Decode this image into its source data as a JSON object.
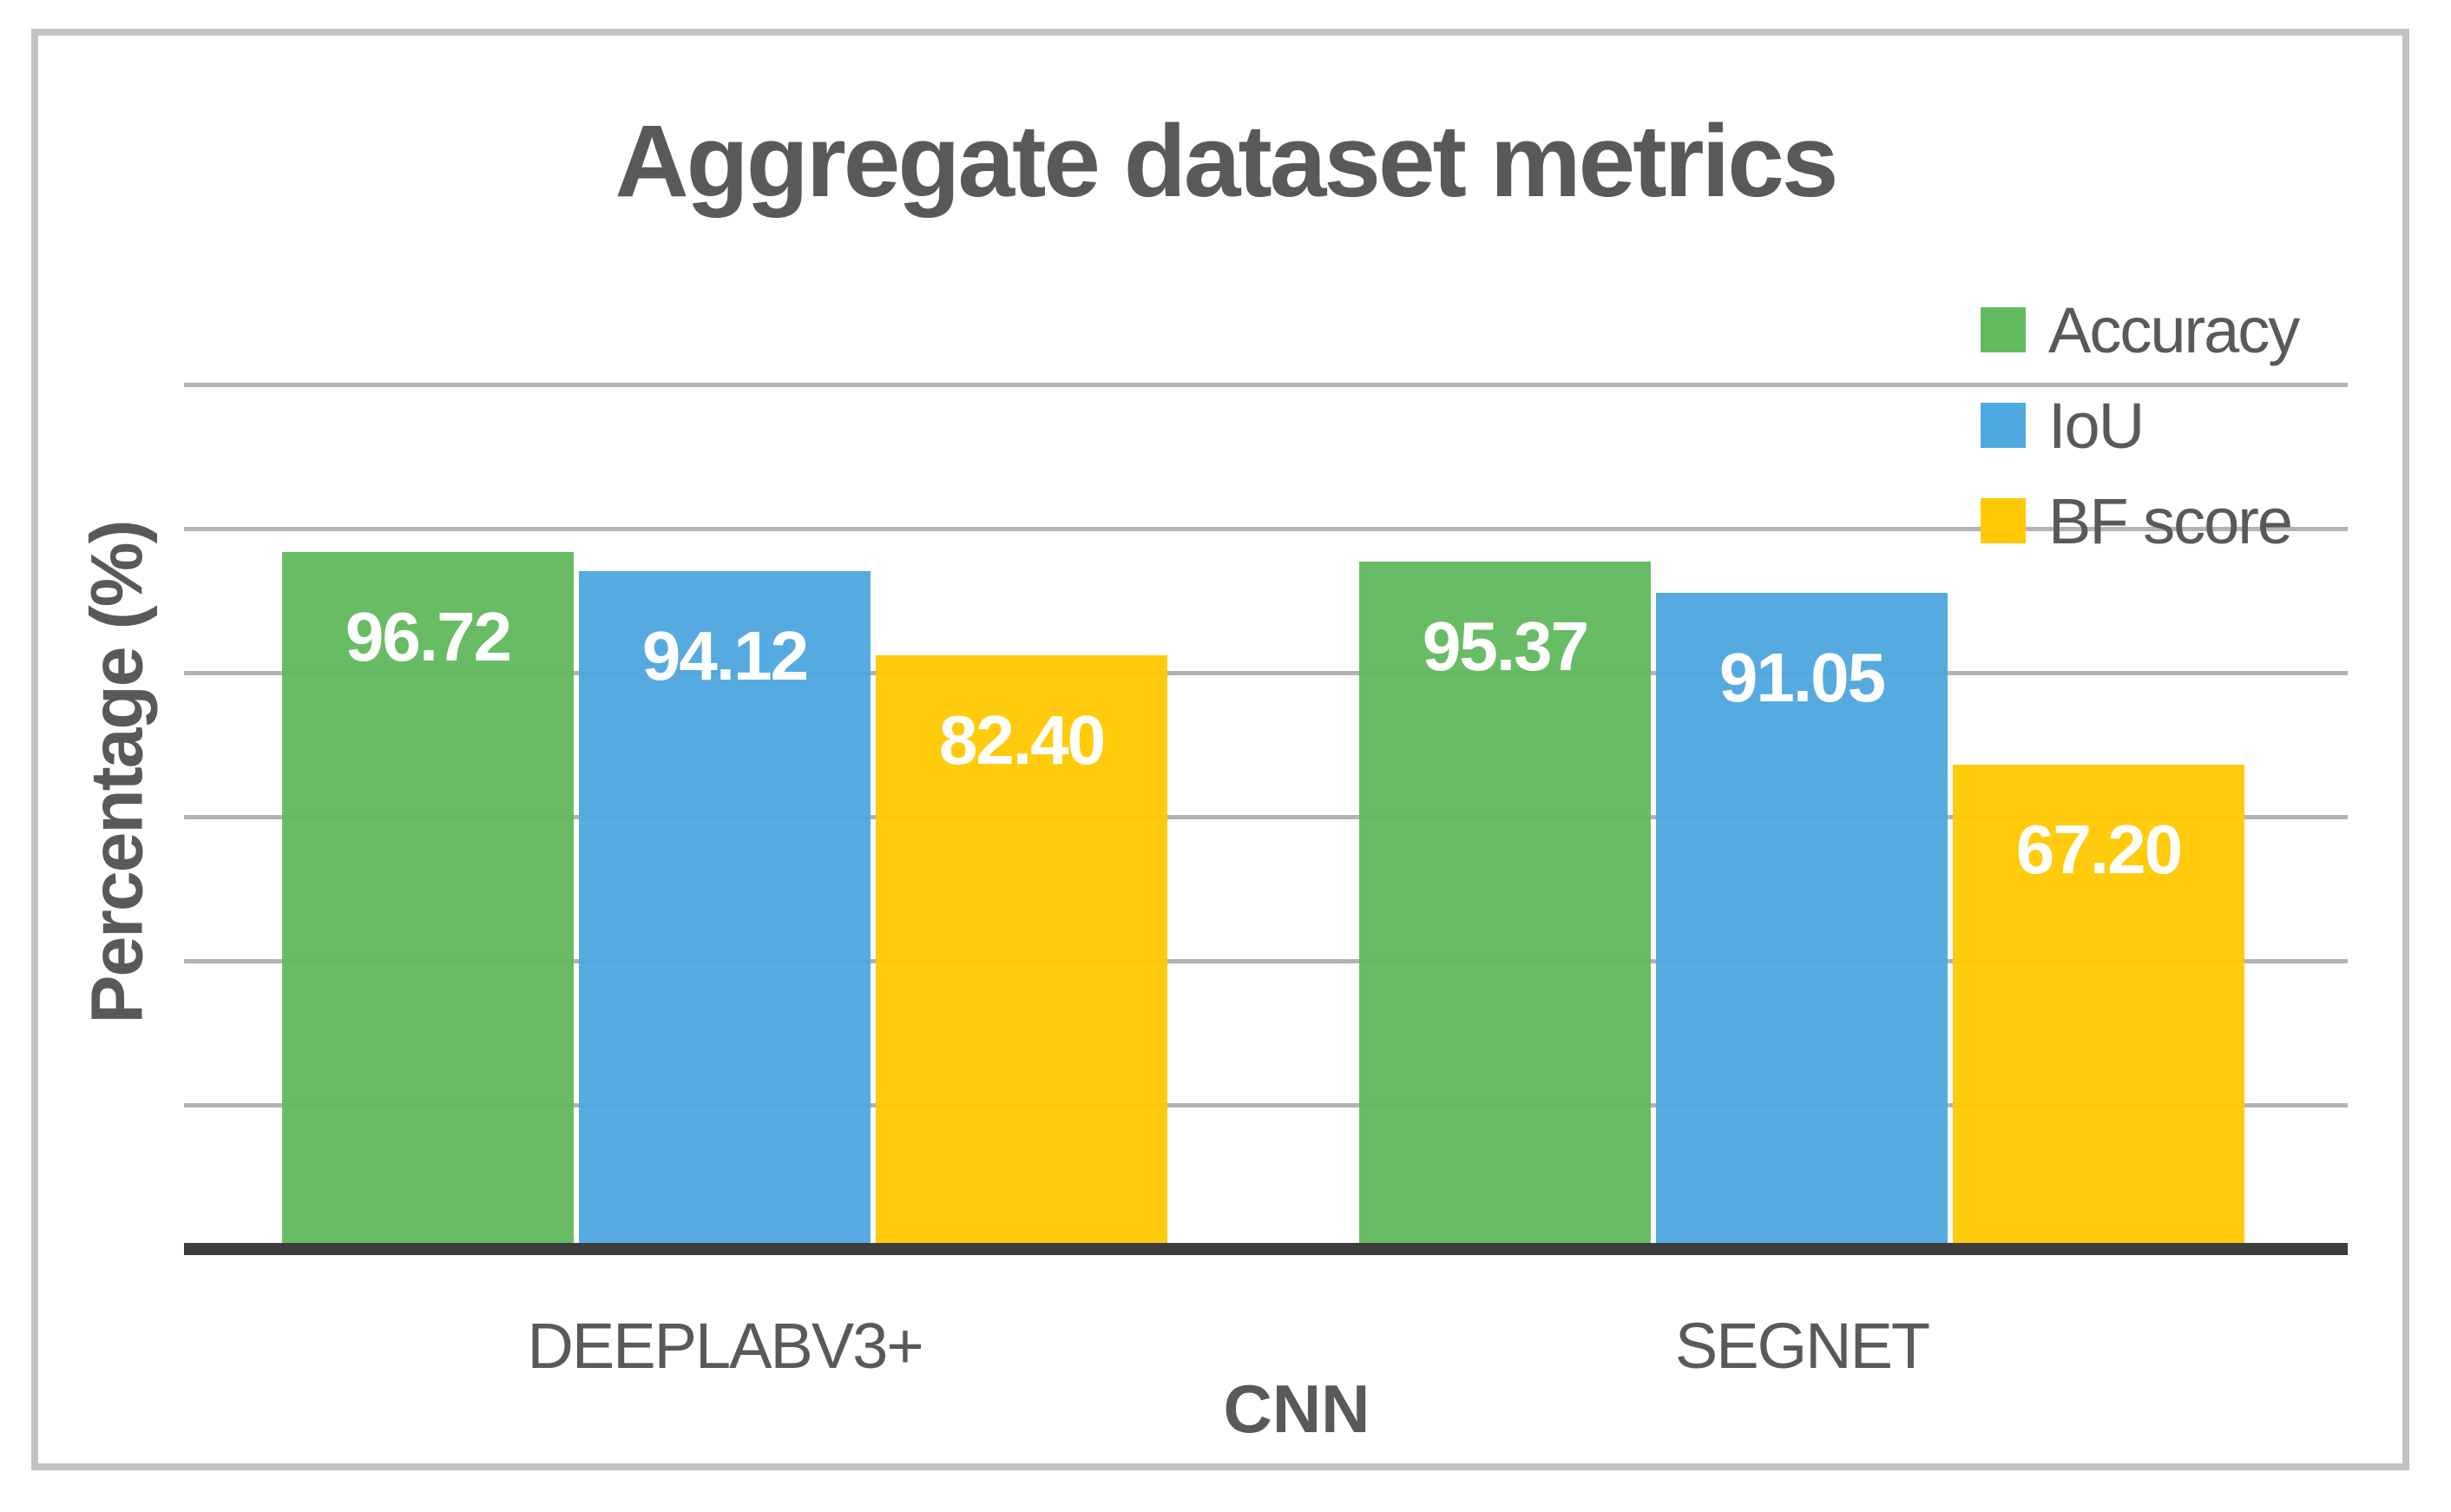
{
  "chart_data": {
    "type": "bar",
    "title": "Aggregate dataset metrics",
    "xlabel": "CNN",
    "ylabel": "Percentage (%)",
    "categories": [
      "DEEPLABV3+",
      "SEGNET"
    ],
    "series": [
      {
        "name": "Accuracy",
        "color": "#62BA5E",
        "values": [
          96.72,
          95.37
        ],
        "labels": [
          "96.72",
          "95.37"
        ]
      },
      {
        "name": "IoU",
        "color": "#4FA8DF",
        "values": [
          94.12,
          91.05
        ],
        "labels": [
          "94.12",
          "91.05"
        ]
      },
      {
        "name": "BF score",
        "color": "#FFC903",
        "values": [
          82.4,
          67.2
        ],
        "labels": [
          "82.40",
          "67.20"
        ]
      }
    ],
    "ylim": [
      0,
      120
    ],
    "gridline_interval": 20,
    "grid": true,
    "legend_position": "top-right",
    "y_tick_labels_visible": false,
    "value_label_position": "inside-end",
    "colors": {
      "text": "#595959",
      "gridline": "#b3b3b3",
      "axis_line": "#3d3d3d",
      "frame_border": "#c2c2c2",
      "value_label": "#ffffff",
      "background": "#ffffff"
    }
  }
}
